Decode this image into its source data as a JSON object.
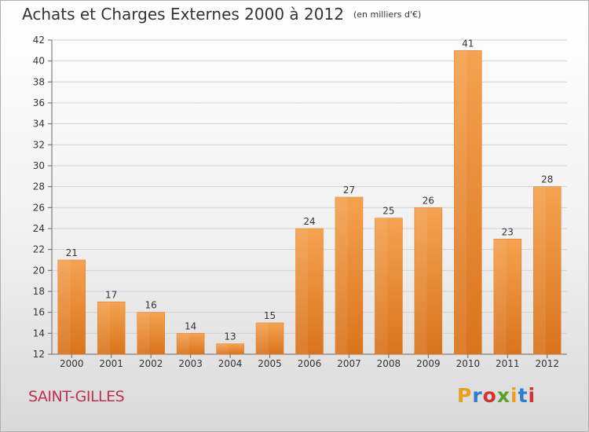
{
  "header": {
    "title": "Achats et Charges Externes 2000 à 2012",
    "unit_note": "(en milliers d'€)"
  },
  "footer": {
    "town": "SAINT-GILLES",
    "brand": "Proxiti",
    "brand_colors": [
      "#e8a020",
      "#2a7fd0",
      "#d83030",
      "#5aa02a",
      "#e8a020",
      "#2a7fd0",
      "#d83030"
    ]
  },
  "chart_data": {
    "type": "bar",
    "title": "Achats et Charges Externes 2000 à 2012",
    "subtitle": "(en milliers d'€)",
    "categories": [
      "2000",
      "2001",
      "2002",
      "2003",
      "2004",
      "2005",
      "2006",
      "2007",
      "2008",
      "2009",
      "2010",
      "2011",
      "2012"
    ],
    "values": [
      21,
      17,
      16,
      14,
      13,
      15,
      24,
      27,
      25,
      26,
      41,
      23,
      28
    ],
    "ylim": [
      12,
      42
    ],
    "yticks": [
      12,
      14,
      16,
      18,
      20,
      22,
      24,
      26,
      28,
      30,
      32,
      34,
      36,
      38,
      40,
      42
    ],
    "grid": true,
    "bar_color": "#f0923a",
    "xlabel": "",
    "ylabel": ""
  }
}
